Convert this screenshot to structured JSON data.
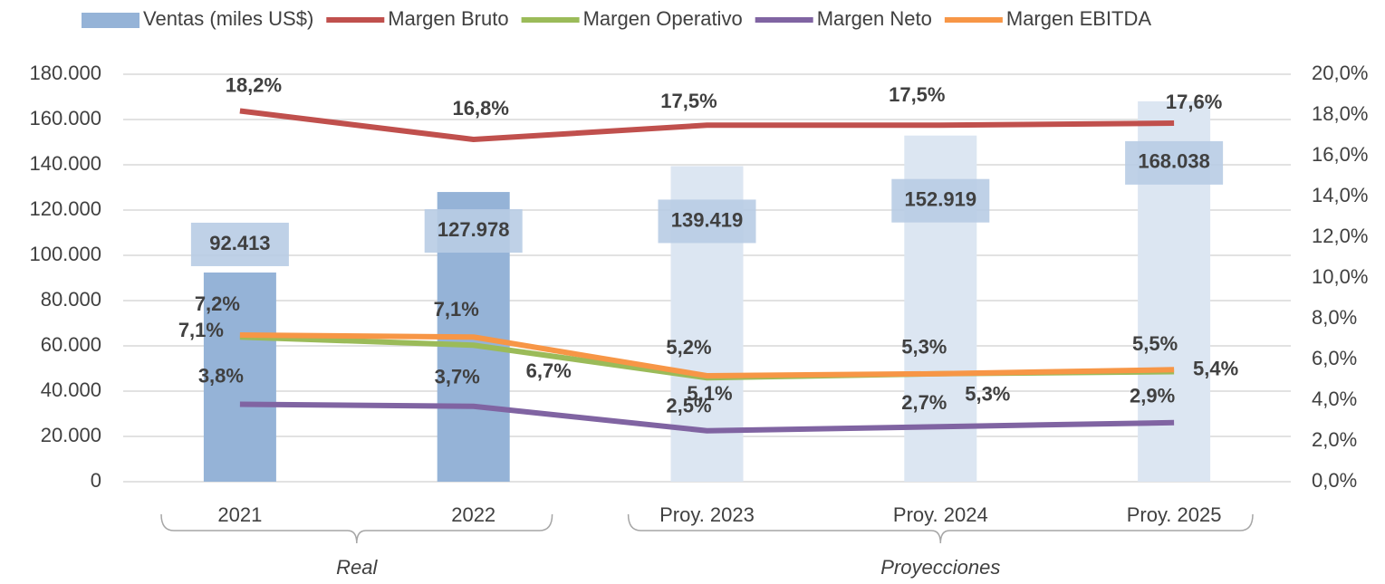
{
  "chart_data": {
    "type": "bar-line",
    "categories": [
      "2021",
      "2022",
      "Proy. 2023",
      "Proy. 2024",
      "Proy. 2025"
    ],
    "groups": [
      {
        "label": "Real",
        "count": 2
      },
      {
        "label": "Proyecciones",
        "count": 3
      }
    ],
    "series": [
      {
        "name": "Ventas (miles US$)",
        "type": "bar",
        "color": "#95b3d7",
        "colors": [
          "#95b3d7",
          "#95b3d7",
          "#dce6f2",
          "#dce6f2",
          "#dce6f2"
        ],
        "values": [
          92413,
          127978,
          139419,
          152919,
          168038
        ],
        "value_labels": [
          "92.413",
          "127.978",
          "139.419",
          "152.919",
          "168.038"
        ]
      },
      {
        "name": "Margen Bruto",
        "type": "line",
        "axis": "y2",
        "color": "#c0504d",
        "values": [
          18.2,
          16.8,
          17.5,
          17.5,
          17.6
        ],
        "value_labels": [
          "18,2%",
          "16,8%",
          "17,5%",
          "17,5%",
          "17,6%"
        ]
      },
      {
        "name": "Margen Operativo",
        "type": "line",
        "axis": "y2",
        "color": "#9bbb59",
        "values": [
          7.1,
          6.7,
          5.1,
          5.3,
          5.4
        ],
        "value_labels": [
          "7,1%",
          "6,7%",
          "5,1%",
          "5,3%",
          "5,4%"
        ]
      },
      {
        "name": "Margen Neto",
        "type": "line",
        "axis": "y2",
        "color": "#8064a2",
        "values": [
          3.8,
          3.7,
          2.5,
          2.7,
          2.9
        ],
        "value_labels": [
          "3,8%",
          "3,7%",
          "2,5%",
          "2,7%",
          "2,9%"
        ]
      },
      {
        "name": "Margen EBITDA",
        "type": "line",
        "axis": "y2",
        "color": "#f79646",
        "values": [
          7.2,
          7.1,
          5.2,
          5.3,
          5.5
        ],
        "value_labels": [
          "7,2%",
          "7,1%",
          "5,2%",
          "5,3%",
          "5,5%"
        ]
      }
    ],
    "ylim": [
      0,
      180000
    ],
    "yticks": [
      0,
      {
        "value": 20000,
        "label": "20.000"
      },
      {
        "value": 40000,
        "label": "40.000"
      },
      {
        "value": 60000,
        "label": "60.000"
      },
      {
        "value": 80000,
        "label": "80.000"
      },
      {
        "value": 100000,
        "label": "100.000"
      },
      {
        "value": 120000,
        "label": "120.000"
      },
      {
        "value": 140000,
        "label": "140.000"
      },
      {
        "value": 160000,
        "label": "160.000"
      },
      {
        "value": 180000,
        "label": "180.000"
      }
    ],
    "y2lim": [
      0,
      20
    ],
    "y2ticks": [
      {
        "value": 0,
        "label": "0,0%"
      },
      {
        "value": 2,
        "label": "2,0%"
      },
      {
        "value": 4,
        "label": "4,0%"
      },
      {
        "value": 6,
        "label": "6,0%"
      },
      {
        "value": 8,
        "label": "8,0%"
      },
      {
        "value": 10,
        "label": "10,0%"
      },
      {
        "value": 12,
        "label": "12,0%"
      },
      {
        "value": 14,
        "label": "14,0%"
      },
      {
        "value": 16,
        "label": "16,0%"
      },
      {
        "value": 18,
        "label": "18,0%"
      },
      {
        "value": 20,
        "label": "20,0%"
      }
    ],
    "grid": true,
    "legend": "top"
  }
}
